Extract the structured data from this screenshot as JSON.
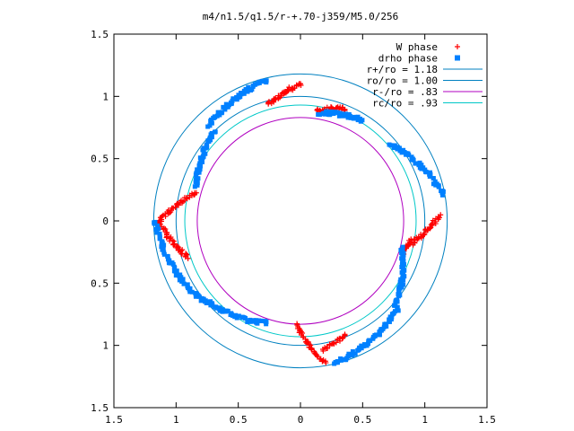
{
  "chart_data": {
    "type": "scatter",
    "title": "m4/n1.5/q1.5/r-+.70-j359/M5.0/256",
    "xlabel": "",
    "ylabel": "",
    "xlim": [
      -1.5,
      1.5
    ],
    "ylim": [
      -1.5,
      1.5
    ],
    "x_tick_values": [
      -1.5,
      -1,
      -0.5,
      0,
      0.5,
      1,
      1.5
    ],
    "x_tick_labels": [
      "1.5",
      "1",
      "0.5",
      "0",
      "0.5",
      "1",
      "1.5"
    ],
    "y_tick_values": [
      1.5,
      1,
      0.5,
      0,
      -0.5,
      -1,
      -1.5
    ],
    "y_tick_labels": [
      "1.5",
      "1",
      "0.5",
      "0",
      "0.5",
      "1",
      "1.5"
    ],
    "grid": false,
    "legend_position": "top-right",
    "legend": [
      {
        "label": "W phase",
        "marker": "+",
        "color": "#ff0000"
      },
      {
        "label": "drho phase",
        "marker": "square",
        "color": "#0080ff"
      },
      {
        "label": "r+/ro = 1.18",
        "marker": "line",
        "color": "#0080c0"
      },
      {
        "label": "ro/ro = 1.00",
        "marker": "line",
        "color": "#0080c0"
      },
      {
        "label": "r-/ro = .83",
        "marker": "line",
        "color": "#b000c0"
      },
      {
        "label": "rc/ro = .93",
        "marker": "line",
        "color": "#00c8c8"
      }
    ],
    "circles": [
      {
        "name": "r+/ro",
        "r": 1.18,
        "color": "#0080c0"
      },
      {
        "name": "ro/ro",
        "r": 1.0,
        "color": "#0080c0"
      },
      {
        "name": "r-/ro",
        "r": 0.83,
        "color": "#b000c0"
      },
      {
        "name": "rc/ro",
        "r": 0.93,
        "color": "#00c8c8"
      }
    ],
    "series": [
      {
        "name": "W phase",
        "color": "#ff0000",
        "arcs": [
          {
            "a0": 90,
            "a1": 105,
            "r0": 1.1,
            "r1": 0.97,
            "n": 40
          },
          {
            "a0": 68,
            "a1": 82,
            "r0": 0.97,
            "r1": 0.9,
            "n": 30
          },
          {
            "a0": 165,
            "a1": 182,
            "r0": 0.86,
            "r1": 1.17,
            "n": 45
          },
          {
            "a0": 182,
            "a1": 198,
            "r0": 1.12,
            "r1": 0.95,
            "n": 40
          },
          {
            "a0": 268,
            "a1": 280,
            "r0": 0.84,
            "r1": 1.16,
            "n": 40
          },
          {
            "a0": 280,
            "a1": 292,
            "r0": 1.05,
            "r1": 0.98,
            "n": 25
          },
          {
            "a0": 348,
            "a1": 362,
            "r0": 0.9,
            "r1": 1.12,
            "n": 40
          },
          {
            "a0": 342,
            "a1": 350,
            "r0": 0.86,
            "r1": 0.9,
            "n": 20
          }
        ]
      },
      {
        "name": "drho phase",
        "color": "#0080ff",
        "arcs": [
          {
            "a0": 104,
            "a1": 134,
            "r0": 1.16,
            "r1": 1.06,
            "n": 55
          },
          {
            "a0": 134,
            "a1": 162,
            "r0": 1.0,
            "r1": 0.88,
            "n": 50
          },
          {
            "a0": 58,
            "a1": 80,
            "r0": 0.95,
            "r1": 0.88,
            "n": 40
          },
          {
            "a0": 10,
            "a1": 40,
            "r0": 1.17,
            "r1": 0.95,
            "n": 50
          },
          {
            "a0": 180,
            "a1": 218,
            "r0": 1.17,
            "r1": 1.02,
            "n": 60
          },
          {
            "a0": 218,
            "a1": 252,
            "r0": 1.0,
            "r1": 0.86,
            "n": 50
          },
          {
            "a0": 283,
            "a1": 318,
            "r0": 1.18,
            "r1": 1.05,
            "n": 60
          },
          {
            "a0": 318,
            "a1": 345,
            "r0": 1.02,
            "r1": 0.85,
            "n": 50
          }
        ]
      }
    ]
  }
}
